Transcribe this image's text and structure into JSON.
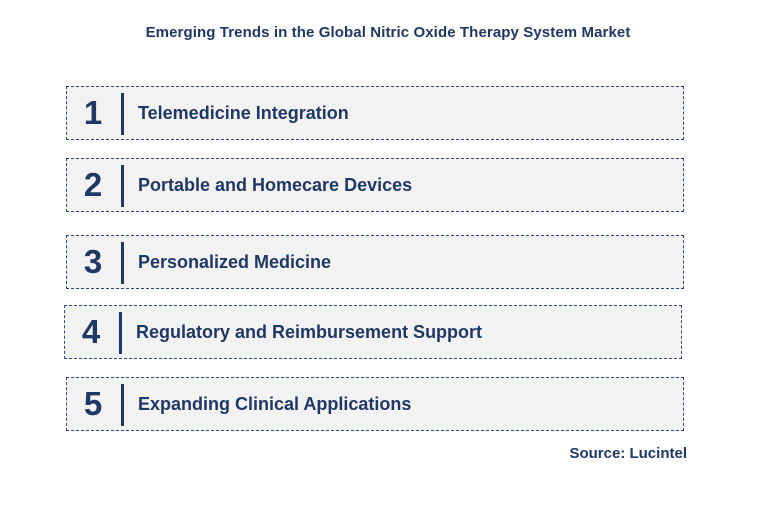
{
  "title": "Emerging Trends in the Global Nitric Oxide Therapy System Market",
  "trends": [
    {
      "number": "1",
      "label": "Telemedicine Integration"
    },
    {
      "number": "2",
      "label": "Portable and Homecare Devices"
    },
    {
      "number": "3",
      "label": "Personalized Medicine"
    },
    {
      "number": "4",
      "label": "Regulatory and Reimbursement Support"
    },
    {
      "number": "5",
      "label": "Expanding Clinical Applications"
    }
  ],
  "source": "Source: Lucintel",
  "colors": {
    "text": "#1f3864",
    "box_fill": "#f2f2f2",
    "box_border": "#2f4a7a"
  }
}
